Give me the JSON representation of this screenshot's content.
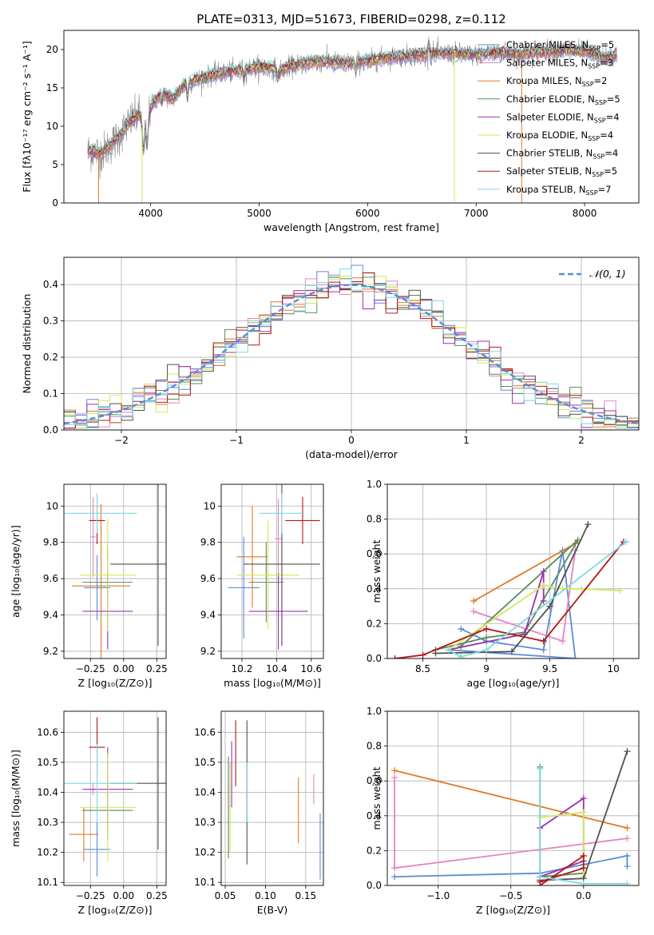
{
  "figure": {
    "title": "PLATE=0313, MJD=51673, FIBERID=0298, z=0.112"
  },
  "colors": {
    "Chabrier MILES": "#5b8bd8",
    "Salpeter MILES": "#e584c0",
    "Kroupa MILES": "#e07a24",
    "Chabrier ELODIE": "#5a8a5a",
    "Salpeter ELODIE": "#9b30b0",
    "Kroupa ELODIE": "#d2e85a",
    "Chabrier STELIB": "#505050",
    "Salpeter STELIB": "#b01818",
    "Kroupa STELIB": "#7fd8e0"
  },
  "chart_data": [
    {
      "id": "spectrum",
      "type": "line",
      "title": "PLATE=0313, MJD=51673, FIBERID=0298, z=0.112",
      "xlabel": "wavelength [Angstrom, rest frame]",
      "ylabel": "Flux [fλ10⁻¹⁷ erg cm⁻² s⁻¹ A⁻¹]",
      "xlim": [
        3200,
        8500
      ],
      "ylim": [
        0,
        22.5
      ],
      "xticks": [
        4000,
        5000,
        6000,
        7000,
        8000
      ],
      "yticks": [
        0,
        5,
        10,
        15,
        20
      ],
      "grid": false,
      "legend": "top-right",
      "continuum": {
        "x": [
          3420,
          3550,
          3700,
          3800,
          3900,
          3950,
          4000,
          4100,
          4200,
          4300,
          4400,
          4600,
          4800,
          5000,
          5200,
          5400,
          5600,
          5800,
          6000,
          6200,
          6400,
          6600,
          6800,
          7000,
          7200,
          7400,
          7600,
          7800,
          8000,
          8200,
          8300
        ],
        "y": [
          6.8,
          6.5,
          8.5,
          10.5,
          11.5,
          9.5,
          12.5,
          14.5,
          13.5,
          15.2,
          16.0,
          16.8,
          17.2,
          17.8,
          17.4,
          18.2,
          18.5,
          18.2,
          18.5,
          19.0,
          19.2,
          19.5,
          19.5,
          19.3,
          19.6,
          19.4,
          19.7,
          19.9,
          19.8,
          18.9,
          19.2
        ]
      },
      "series": [
        {
          "name": "Chabrier MILES",
          "nssp": "5"
        },
        {
          "name": "Salpeter MILES",
          "nssp": "3"
        },
        {
          "name": "Kroupa MILES",
          "nssp": "2"
        },
        {
          "name": "Chabrier ELODIE",
          "nssp": "5"
        },
        {
          "name": "Salpeter ELODIE",
          "nssp": "4"
        },
        {
          "name": "Kroupa ELODIE",
          "nssp": "4"
        },
        {
          "name": "Chabrier STELIB",
          "nssp": "4"
        },
        {
          "name": "Salpeter STELIB",
          "nssp": "5"
        },
        {
          "name": "Kroupa STELIB",
          "nssp": "7"
        }
      ]
    },
    {
      "id": "residuals",
      "type": "line",
      "xlabel": "(data-model)/error",
      "ylabel": "Normed distribution",
      "xlim": [
        -2.5,
        2.5
      ],
      "ylim": [
        0,
        0.475
      ],
      "xticks": [
        -2,
        -1,
        0,
        1,
        2
      ],
      "yticks": [
        0.0,
        0.1,
        0.2,
        0.3,
        0.4
      ],
      "grid": true,
      "legend": "top-right",
      "reference": {
        "name": "𝒩(0, 1)",
        "mean": 0,
        "sigma": 1
      },
      "bins": {
        "start": -2.5,
        "width": 0.1,
        "count": 50
      }
    },
    {
      "id": "age-vs-Z",
      "type": "scatter",
      "xlabel": "Z [log₁₀(Z/Z⊙)]",
      "ylabel": "age  [log₁₀(age/yr)]",
      "xlim": [
        -0.45,
        0.32
      ],
      "ylim": [
        9.16,
        10.12
      ],
      "xticks": [
        -0.25,
        0.0,
        0.25
      ],
      "xticklabels": [
        "−0.25",
        "0.00",
        "0.25"
      ],
      "yticks": [
        9.2,
        9.4,
        9.6,
        9.8,
        10.0
      ],
      "grid": true,
      "points": [
        {
          "series": "Chabrier MILES",
          "x": -0.2,
          "xerr": 0.1,
          "y": 9.55,
          "yerr": 0.18
        },
        {
          "series": "Salpeter MILES",
          "x": -0.23,
          "xerr": 0.02,
          "y": 9.83,
          "yerr": 0.22
        },
        {
          "series": "Kroupa MILES",
          "x": -0.17,
          "xerr": 0.22,
          "y": 9.56,
          "yerr": 0.45
        },
        {
          "series": "Chabrier ELODIE",
          "x": -0.12,
          "xerr": 0.19,
          "y": 9.58,
          "yerr": 0.2
        },
        {
          "series": "Salpeter ELODIE",
          "x": -0.12,
          "xerr": 0.19,
          "y": 9.42,
          "yerr": 0.21
        },
        {
          "series": "Kroupa ELODIE",
          "x": -0.12,
          "xerr": 0.21,
          "y": 9.62,
          "yerr": 0.31
        },
        {
          "series": "Chabrier STELIB",
          "x": 0.26,
          "xerr": 0.36,
          "y": 9.68,
          "yerr": 0.45
        },
        {
          "series": "Salpeter STELIB",
          "x": -0.2,
          "xerr": 0.06,
          "y": 9.92,
          "yerr": 0.13
        },
        {
          "series": "Kroupa STELIB",
          "x": -0.2,
          "xerr": 0.3,
          "y": 9.96,
          "yerr": 0.11
        }
      ]
    },
    {
      "id": "age-vs-mass",
      "type": "scatter",
      "xlabel": "mass [log₁₀(M/M⊙)]",
      "ylabel": "",
      "xlim": [
        10.08,
        10.67
      ],
      "ylim": [
        9.16,
        10.12
      ],
      "xticks": [
        10.2,
        10.4,
        10.6
      ],
      "yticks": [
        9.2,
        9.4,
        9.6,
        9.8,
        10.0
      ],
      "grid": true,
      "points": [
        {
          "series": "Chabrier MILES",
          "x": 10.21,
          "xerr": 0.09,
          "y": 9.55,
          "yerr": 0.28
        },
        {
          "series": "Salpeter MILES",
          "x": 10.41,
          "xerr": 0.02,
          "y": 9.82,
          "yerr": 0.22
        },
        {
          "series": "Kroupa MILES",
          "x": 10.26,
          "xerr": 0.09,
          "y": 9.72,
          "yerr": 0.28
        },
        {
          "series": "Chabrier ELODIE",
          "x": 10.34,
          "xerr": 0.1,
          "y": 9.58,
          "yerr": 0.22
        },
        {
          "series": "Salpeter ELODIE",
          "x": 10.41,
          "xerr": 0.17,
          "y": 9.42,
          "yerr": 0.21
        },
        {
          "series": "Kroupa ELODIE",
          "x": 10.35,
          "xerr": 0.18,
          "y": 9.62,
          "yerr": 0.3
        },
        {
          "series": "Chabrier STELIB",
          "x": 10.43,
          "xerr": 0.22,
          "y": 9.68,
          "yerr": 0.45
        },
        {
          "series": "Salpeter STELIB",
          "x": 10.55,
          "xerr": 0.1,
          "y": 9.92,
          "yerr": 0.13
        },
        {
          "series": "Kroupa STELIB",
          "x": 10.43,
          "xerr": 0.13,
          "y": 9.96,
          "yerr": 0.11
        }
      ]
    },
    {
      "id": "weight-vs-age",
      "type": "line",
      "xlabel": "age  [log₁₀(age/yr)]",
      "ylabel": "mass weight",
      "xlim": [
        8.22,
        10.2
      ],
      "ylim": [
        0.0,
        1.0
      ],
      "xticks": [
        8.5,
        9.0,
        9.5,
        10.0
      ],
      "yticks": [
        0.0,
        0.2,
        0.4,
        0.6,
        0.8,
        1.0
      ],
      "grid": true,
      "series": [
        {
          "name": "Chabrier MILES",
          "x": [
            8.8,
            9.0,
            9.45,
            9.6,
            9.7,
            8.7
          ],
          "y": [
            0.17,
            0.1,
            0.05,
            0.62,
            0.0,
            0.05
          ]
        },
        {
          "name": "Salpeter MILES",
          "x": [
            8.9,
            9.6,
            9.7
          ],
          "y": [
            0.27,
            0.1,
            0.62
          ]
        },
        {
          "name": "Kroupa MILES",
          "x": [
            8.9,
            9.7
          ],
          "y": [
            0.33,
            0.66
          ]
        },
        {
          "name": "Chabrier ELODIE",
          "x": [
            8.6,
            9.0,
            9.3,
            9.72,
            8.8
          ],
          "y": [
            0.05,
            0.12,
            0.15,
            0.68,
            0.07
          ]
        },
        {
          "name": "Salpeter ELODIE",
          "x": [
            8.7,
            9.3,
            9.45,
            9.45
          ],
          "y": [
            0.05,
            0.14,
            0.5,
            0.33
          ]
        },
        {
          "name": "Kroupa ELODIE",
          "x": [
            8.7,
            9.45,
            9.6,
            9.75,
            10.05
          ],
          "y": [
            0.05,
            0.42,
            0.4,
            0.4,
            0.39
          ]
        },
        {
          "name": "Chabrier STELIB",
          "x": [
            8.6,
            9.2,
            9.5,
            9.8
          ],
          "y": [
            0.03,
            0.04,
            0.3,
            0.77
          ]
        },
        {
          "name": "Salpeter STELIB",
          "x": [
            8.28,
            8.5,
            9.0,
            9.45,
            10.08
          ],
          "y": [
            0.0,
            0.02,
            0.17,
            0.1,
            0.67
          ]
        },
        {
          "name": "Kroupa STELIB",
          "x": [
            8.7,
            8.8,
            9.0,
            10.1
          ],
          "y": [
            0.05,
            0.01,
            0.05,
            0.67
          ]
        }
      ]
    },
    {
      "id": "mass-vs-Z",
      "type": "scatter",
      "xlabel": "Z [log₁₀(Z/Z⊙)]",
      "ylabel": "mass [log₁₀(M/M⊙)]",
      "xlim": [
        -0.45,
        0.32
      ],
      "ylim": [
        10.09,
        10.67
      ],
      "xticks": [
        -0.25,
        0.0,
        0.25
      ],
      "xticklabels": [
        "−0.25",
        "0.00",
        "0.25"
      ],
      "yticks": [
        10.1,
        10.2,
        10.3,
        10.4,
        10.5,
        10.6
      ],
      "grid": true,
      "points": [
        {
          "series": "Chabrier MILES",
          "x": -0.2,
          "xerr": 0.1,
          "y": 10.21,
          "yerr": 0.09
        },
        {
          "series": "Salpeter MILES",
          "x": -0.23,
          "xerr": 0.02,
          "y": 10.41,
          "yerr": 0.02
        },
        {
          "series": "Kroupa MILES",
          "x": -0.3,
          "xerr": 0.11,
          "y": 10.26,
          "yerr": 0.09
        },
        {
          "series": "Chabrier ELODIE",
          "x": -0.12,
          "xerr": 0.19,
          "y": 10.34,
          "yerr": 0.1
        },
        {
          "series": "Salpeter ELODIE",
          "x": -0.12,
          "xerr": 0.19,
          "y": 10.41,
          "yerr": 0.14
        },
        {
          "series": "Kroupa ELODIE",
          "x": -0.12,
          "xerr": 0.21,
          "y": 10.35,
          "yerr": 0.18
        },
        {
          "series": "Chabrier STELIB",
          "x": 0.26,
          "xerr": 0.36,
          "y": 10.43,
          "yerr": 0.22
        },
        {
          "series": "Salpeter STELIB",
          "x": -0.2,
          "xerr": 0.06,
          "y": 10.55,
          "yerr": 0.1
        },
        {
          "series": "Kroupa STELIB",
          "x": -0.2,
          "xerr": 0.3,
          "y": 10.43,
          "yerr": 0.13
        }
      ]
    },
    {
      "id": "mass-vs-ebv",
      "type": "scatter",
      "xlabel": "E(B-V)",
      "ylabel": "",
      "xlim": [
        0.045,
        0.172
      ],
      "ylim": [
        10.09,
        10.67
      ],
      "xticks": [
        0.05,
        0.1,
        0.15
      ],
      "xticklabels": [
        "0.05",
        "0.10",
        "0.15"
      ],
      "yticks": [
        10.1,
        10.2,
        10.3,
        10.4,
        10.5,
        10.6
      ],
      "grid": true,
      "points": [
        {
          "series": "Chabrier MILES",
          "x": 0.168,
          "y": 10.22,
          "yerr": 0.11
        },
        {
          "series": "Salpeter MILES",
          "x": 0.16,
          "y": 10.41,
          "yerr": 0.05
        },
        {
          "series": "Kroupa MILES",
          "x": 0.141,
          "y": 10.34,
          "yerr": 0.11
        },
        {
          "series": "Chabrier ELODIE",
          "x": 0.054,
          "y": 10.35,
          "yerr": 0.17
        },
        {
          "series": "Salpeter ELODIE",
          "x": 0.058,
          "y": 10.46,
          "yerr": 0.11
        },
        {
          "series": "Kroupa ELODIE",
          "x": 0.056,
          "y": 10.35,
          "yerr": 0.15
        },
        {
          "series": "Chabrier STELIB",
          "x": 0.077,
          "y": 10.4,
          "yerr": 0.24
        },
        {
          "series": "Salpeter STELIB",
          "x": 0.063,
          "y": 10.53,
          "yerr": 0.11
        },
        {
          "series": "Kroupa STELIB",
          "x": 0.077,
          "y": 10.4,
          "yerr": 0.1
        }
      ]
    },
    {
      "id": "weight-vs-Z",
      "type": "line",
      "xlabel": "Z [log₁₀(Z/Z⊙)]",
      "ylabel": "mass weight",
      "xlim": [
        -1.35,
        0.38
      ],
      "ylim": [
        0.0,
        1.0
      ],
      "xticks": [
        -1.0,
        -0.5,
        0.0
      ],
      "xticklabels": [
        "−1.0",
        "−0.5",
        "0.0"
      ],
      "yticks": [
        0.0,
        0.2,
        0.4,
        0.6,
        0.8,
        1.0
      ],
      "grid": true,
      "series": [
        {
          "name": "Chabrier MILES",
          "x": [
            -1.3,
            -0.3,
            0.3,
            0.3
          ],
          "y": [
            0.05,
            0.07,
            0.17,
            0.11
          ]
        },
        {
          "name": "Salpeter MILES",
          "x": [
            -1.3,
            -1.3,
            0.3
          ],
          "y": [
            0.62,
            0.1,
            0.27
          ]
        },
        {
          "name": "Kroupa MILES",
          "x": [
            -1.3,
            0.3
          ],
          "y": [
            0.66,
            0.33
          ]
        },
        {
          "name": "Chabrier ELODIE",
          "x": [
            -0.3,
            -0.3,
            0.0,
            0.0
          ],
          "y": [
            0.68,
            0.05,
            0.07,
            0.12
          ]
        },
        {
          "name": "Salpeter ELODIE",
          "x": [
            -0.3,
            0.0,
            0.0,
            -0.3
          ],
          "y": [
            0.33,
            0.5,
            0.14,
            0.05
          ]
        },
        {
          "name": "Kroupa ELODIE",
          "x": [
            -0.3,
            0.0,
            0.0
          ],
          "y": [
            0.39,
            0.42,
            0.05
          ]
        },
        {
          "name": "Chabrier STELIB",
          "x": [
            -0.3,
            0.0,
            0.3
          ],
          "y": [
            0.03,
            0.04,
            0.77
          ]
        },
        {
          "name": "Salpeter STELIB",
          "x": [
            -0.3,
            0.0,
            0.0,
            -0.3
          ],
          "y": [
            0.0,
            0.17,
            0.1,
            0.02
          ]
        },
        {
          "name": "Kroupa STELIB",
          "x": [
            -0.3,
            -0.3,
            0.0,
            0.3
          ],
          "y": [
            0.67,
            0.05,
            0.01,
            0.01
          ]
        }
      ]
    }
  ]
}
